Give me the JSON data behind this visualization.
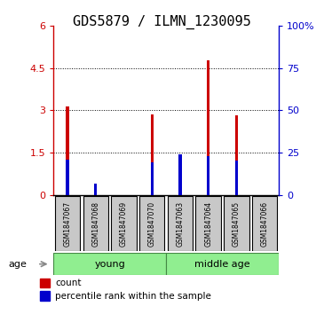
{
  "title": "GDS5879 / ILMN_1230095",
  "samples": [
    "GSM1847067",
    "GSM1847068",
    "GSM1847069",
    "GSM1847070",
    "GSM1847063",
    "GSM1847064",
    "GSM1847065",
    "GSM1847066"
  ],
  "groups": [
    {
      "name": "young",
      "indices": [
        0,
        1,
        2,
        3
      ],
      "color": "#90EE90"
    },
    {
      "name": "middle age",
      "indices": [
        4,
        5,
        6,
        7
      ],
      "color": "#90EE90"
    }
  ],
  "count_values": [
    3.15,
    0.22,
    0.0,
    2.85,
    0.0,
    4.78,
    2.82,
    0.0
  ],
  "percentile_values_pct": [
    21.0,
    6.5,
    0.0,
    19.0,
    24.0,
    23.0,
    20.0,
    0.0
  ],
  "left_ylim": [
    0,
    6
  ],
  "left_yticks": [
    0,
    1.5,
    3.0,
    4.5,
    6
  ],
  "left_yticklabels": [
    "0",
    "1.5",
    "3",
    "4.5",
    "6"
  ],
  "right_ylim": [
    0,
    100
  ],
  "right_yticks": [
    0,
    25,
    50,
    75,
    100
  ],
  "right_yticklabels": [
    "0",
    "25",
    "50",
    "75",
    "100%"
  ],
  "left_color": "#cc0000",
  "right_color": "#0000cc",
  "bar_color_red": "#cc0000",
  "bar_color_blue": "#0000cc",
  "sample_box_color": "#c8c8c8",
  "grid_yticks": [
    1.5,
    3.0,
    4.5
  ],
  "age_label": "age",
  "legend_count": "count",
  "legend_percentile": "percentile rank within the sample",
  "title_fontsize": 11,
  "tick_fontsize": 8,
  "label_fontsize": 8,
  "bar_width": 0.1
}
